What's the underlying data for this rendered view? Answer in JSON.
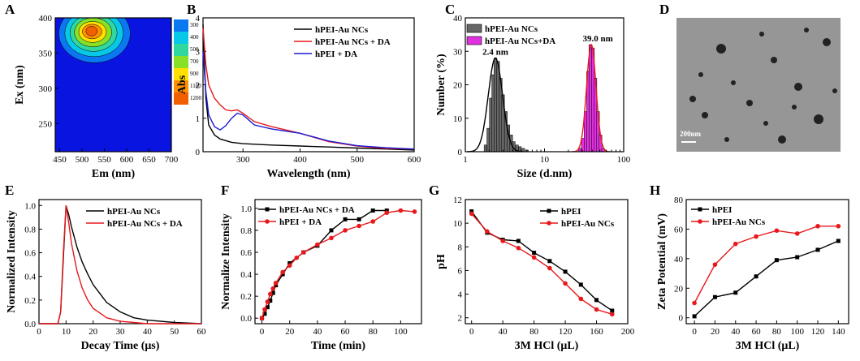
{
  "colors": {
    "black": "#000000",
    "red": "#e8191c",
    "blue": "#1a1ad6",
    "gray": "#555555",
    "magenta": "#e030e0",
    "contour": [
      "#0a14e0",
      "#0a78f0",
      "#08c8e8",
      "#30d8a0",
      "#88e028",
      "#ffe000",
      "#ff9000",
      "#f06000"
    ]
  },
  "chart_data": [
    {
      "panel": "A",
      "type": "heatmap",
      "xlabel": "Em (nm)",
      "ylabel": "Ex (nm)",
      "xlim": [
        440,
        700
      ],
      "ylim": [
        210,
        400
      ],
      "xticks": [
        "450",
        "500",
        "550",
        "600",
        "650",
        "700"
      ],
      "yticks": [
        "250",
        "300",
        "350",
        "400"
      ],
      "peak": {
        "em": 528,
        "ex": 380
      },
      "legend_levels": [
        "300",
        "400",
        "500",
        "700",
        "900",
        "1100",
        "1200"
      ]
    },
    {
      "panel": "B",
      "type": "line",
      "xlabel": "Wavelength (nm)",
      "ylabel": "Abs",
      "xlim": [
        230,
        600
      ],
      "ylim": [
        0,
        4
      ],
      "xticks": [
        "300",
        "400",
        "500",
        "600"
      ],
      "yticks": [
        "0",
        "1",
        "2",
        "3",
        "4"
      ],
      "series": [
        {
          "name": "hPEI-Au NCs",
          "x": [
            230,
            235,
            240,
            250,
            260,
            280,
            300,
            350,
            400,
            450,
            500,
            550,
            600
          ],
          "y": [
            3.8,
            1.6,
            0.8,
            0.5,
            0.38,
            0.28,
            0.24,
            0.2,
            0.17,
            0.14,
            0.11,
            0.08,
            0.05
          ]
        },
        {
          "name": "hPEI-Au NCs + DA",
          "x": [
            230,
            235,
            240,
            250,
            260,
            270,
            280,
            290,
            300,
            320,
            350,
            400,
            450,
            500,
            550,
            600
          ],
          "y": [
            3.7,
            2.6,
            2.0,
            1.6,
            1.4,
            1.25,
            1.22,
            1.25,
            1.15,
            0.9,
            0.75,
            0.55,
            0.3,
            0.17,
            0.1,
            0.08
          ]
        },
        {
          "name": "hPEI + DA",
          "x": [
            230,
            235,
            240,
            250,
            260,
            270,
            280,
            290,
            300,
            310,
            320,
            350,
            400,
            450,
            500,
            550,
            600
          ],
          "y": [
            3.0,
            1.8,
            1.1,
            0.75,
            0.65,
            0.78,
            1.0,
            1.15,
            1.1,
            0.95,
            0.8,
            0.68,
            0.55,
            0.32,
            0.18,
            0.12,
            0.08
          ]
        }
      ]
    },
    {
      "panel": "C",
      "type": "bar",
      "xlabel": "Size (d.nm)",
      "ylabel": "Number (%)",
      "xscale": "log",
      "xlim": [
        1,
        100
      ],
      "ylim": [
        0,
        40
      ],
      "xticks": [
        "1",
        "10",
        "100"
      ],
      "yticks": [
        "0",
        "10",
        "20",
        "30",
        "40"
      ],
      "annotations": [
        "2.4 nm",
        "39.0 nm"
      ],
      "series": [
        {
          "name": "hPEI-Au NCs",
          "x": [
            1.8,
            1.95,
            2.1,
            2.25,
            2.4,
            2.6,
            2.8,
            3.0,
            3.25,
            3.5,
            3.8,
            4.1,
            4.5,
            4.9,
            5.4,
            6.0
          ],
          "values": [
            2,
            7,
            16,
            23,
            28,
            27,
            22,
            17,
            12,
            8,
            5,
            3,
            2,
            1.5,
            1,
            0.5
          ]
        },
        {
          "name": "hPEI-Au NCs+DA",
          "x": [
            28,
            30.5,
            33,
            35.5,
            38,
            41,
            44,
            47.5,
            51,
            55
          ],
          "values": [
            1,
            4,
            12,
            24,
            32,
            31,
            22,
            12,
            5,
            1
          ]
        }
      ],
      "fit_curves": [
        {
          "name": "hPEI-Au NCs fit",
          "peak_x": 2.4,
          "peak_y": 28,
          "sigma_log10": 0.09
        },
        {
          "name": "hPEI-Au NCs+DA fit",
          "peak_x": 39.0,
          "peak_y": 32,
          "sigma_log10": 0.06
        }
      ]
    },
    {
      "panel": "D",
      "type": "other",
      "description_label": "200nm"
    },
    {
      "panel": "E",
      "type": "line",
      "xlabel": "Decay Time (μs)",
      "ylabel": "Normalized Intensity",
      "xlim": [
        0,
        60
      ],
      "ylim": [
        0,
        1.05
      ],
      "xticks": [
        "0",
        "10",
        "20",
        "30",
        "40",
        "50",
        "60"
      ],
      "yticks": [
        "0.0",
        "0.2",
        "0.4",
        "0.6",
        "0.8",
        "1.0"
      ],
      "series": [
        {
          "name": "hPEI-Au NCs",
          "x": [
            0,
            7,
            8,
            9,
            10,
            11,
            12,
            14,
            16,
            18,
            20,
            25,
            30,
            35,
            40,
            50,
            60
          ],
          "y": [
            0,
            0,
            0.1,
            0.55,
            1.0,
            0.92,
            0.82,
            0.65,
            0.52,
            0.42,
            0.33,
            0.18,
            0.1,
            0.05,
            0.03,
            0.01,
            0
          ]
        },
        {
          "name": "hPEI-Au NCs + DA",
          "x": [
            0,
            7,
            8,
            9,
            10,
            11,
            12,
            14,
            16,
            18,
            20,
            25,
            30,
            35,
            40,
            50,
            60
          ],
          "y": [
            0,
            0,
            0.1,
            0.6,
            1.0,
            0.85,
            0.68,
            0.45,
            0.3,
            0.2,
            0.13,
            0.05,
            0.02,
            0.01,
            0,
            0,
            0
          ]
        }
      ]
    },
    {
      "panel": "F",
      "type": "line",
      "xlabel": "Time (min)",
      "ylabel": "Normalize Intensity",
      "xlim": [
        -5,
        115
      ],
      "ylim": [
        -0.05,
        1.08
      ],
      "xticks": [
        "0",
        "20",
        "40",
        "60",
        "80",
        "100"
      ],
      "yticks": [
        "0.0",
        "0.2",
        "0.4",
        "0.6",
        "0.8",
        "1.0"
      ],
      "series": [
        {
          "name": "hPEI-Au NCs + DA",
          "marker": "square",
          "x": [
            0,
            2,
            4,
            6,
            8,
            10,
            15,
            20,
            30,
            40,
            50,
            60,
            70,
            80,
            90
          ],
          "y": [
            0,
            0.04,
            0.1,
            0.16,
            0.23,
            0.3,
            0.4,
            0.5,
            0.6,
            0.66,
            0.8,
            0.9,
            0.9,
            0.98,
            0.98
          ]
        },
        {
          "name": "hPEI + DA",
          "marker": "circle",
          "x": [
            0,
            2,
            4,
            6,
            8,
            10,
            15,
            20,
            25,
            30,
            40,
            50,
            60,
            70,
            80,
            90,
            100,
            110
          ],
          "y": [
            0,
            0.08,
            0.15,
            0.22,
            0.27,
            0.32,
            0.42,
            0.48,
            0.55,
            0.6,
            0.67,
            0.73,
            0.8,
            0.84,
            0.88,
            0.96,
            0.98,
            0.97
          ]
        }
      ]
    },
    {
      "panel": "G",
      "type": "line",
      "xlabel": "3M HCl (μL)",
      "ylabel": "pH",
      "xlim": [
        -8,
        200
      ],
      "ylim": [
        1.5,
        12
      ],
      "xticks": [
        "0",
        "40",
        "80",
        "120",
        "160",
        "200"
      ],
      "yticks": [
        "2",
        "4",
        "6",
        "8",
        "10",
        "12"
      ],
      "series": [
        {
          "name": "hPEI",
          "marker": "square",
          "x": [
            0,
            20,
            40,
            60,
            80,
            100,
            120,
            140,
            160,
            180
          ],
          "y": [
            11.0,
            9.2,
            8.6,
            8.5,
            7.5,
            6.8,
            5.9,
            4.8,
            3.5,
            2.6
          ]
        },
        {
          "name": "hPEI-Au NCs",
          "marker": "circle",
          "x": [
            0,
            20,
            40,
            60,
            80,
            100,
            120,
            140,
            160,
            180
          ],
          "y": [
            10.8,
            9.3,
            8.5,
            7.9,
            7.1,
            6.2,
            4.9,
            3.6,
            2.7,
            2.3
          ]
        }
      ]
    },
    {
      "panel": "H",
      "type": "line",
      "xlabel": "3M HCl (μL)",
      "ylabel": "Zeta Potential (mV)",
      "xlim": [
        -8,
        150
      ],
      "ylim": [
        -4,
        80
      ],
      "xticks": [
        "0",
        "20",
        "40",
        "60",
        "80",
        "100",
        "120",
        "140"
      ],
      "yticks": [
        "0",
        "20",
        "40",
        "60",
        "80"
      ],
      "series": [
        {
          "name": "hPEI",
          "marker": "square",
          "x": [
            0,
            20,
            40,
            60,
            80,
            100,
            120,
            140
          ],
          "y": [
            1,
            14,
            17,
            28,
            39,
            41,
            46,
            52
          ]
        },
        {
          "name": "hPEI-Au NCs",
          "marker": "circle",
          "x": [
            0,
            20,
            40,
            60,
            80,
            100,
            120,
            140
          ],
          "y": [
            10,
            36,
            50,
            55,
            59,
            57,
            62,
            62
          ]
        }
      ]
    }
  ]
}
